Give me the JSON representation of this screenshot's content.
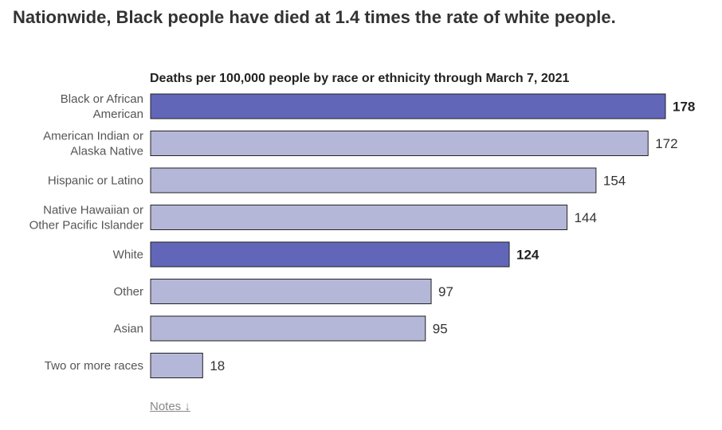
{
  "header": {
    "title": "Nationwide, Black people have died at 1.4 times the rate of white people."
  },
  "chart_data": {
    "type": "bar",
    "orientation": "horizontal",
    "title": "Deaths per 100,000 people by race or ethnicity through March 7, 2021",
    "categories": [
      [
        "Black or African",
        "American"
      ],
      [
        "American Indian or",
        "Alaska Native"
      ],
      [
        "Hispanic or Latino"
      ],
      [
        "Native Hawaiian or",
        "Other Pacific Islander"
      ],
      [
        "White"
      ],
      [
        "Other"
      ],
      [
        "Asian"
      ],
      [
        "Two or more races"
      ]
    ],
    "values": [
      178,
      172,
      154,
      144,
      124,
      97,
      95,
      18
    ],
    "highlighted": [
      true,
      false,
      false,
      false,
      true,
      false,
      false,
      false
    ],
    "xlim": [
      0,
      178
    ],
    "grid": false,
    "legend": "none"
  },
  "colors": {
    "highlight": "#6166b8",
    "normal": "#b5b7d9",
    "outline": "#222222"
  },
  "notes": {
    "label": "Notes ↓"
  }
}
